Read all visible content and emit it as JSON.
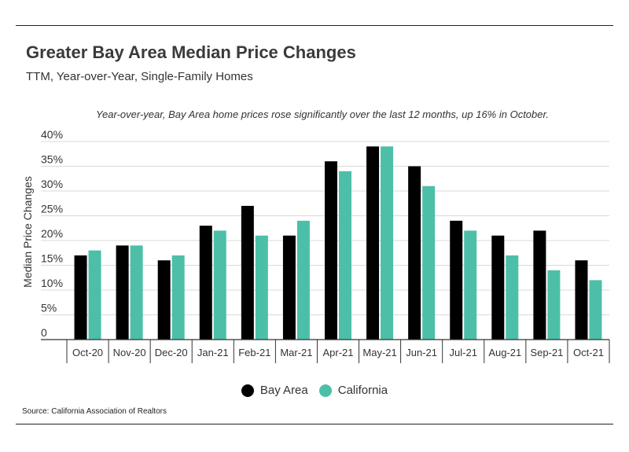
{
  "header": {
    "title": "Greater Bay Area Median Price Changes",
    "subtitle": "TTM, Year-over-Year, Single-Family Homes"
  },
  "annotation": "Year-over-year, Bay Area home prices rose significantly over the last 12 months, up 16% in October.",
  "source": "Source:  California Association of Realtors",
  "colors": {
    "bay_area": "#000000",
    "california": "#4dbfa8"
  },
  "chart_data": {
    "type": "bar",
    "title": "Greater Bay Area Median Price Changes",
    "subtitle": "TTM, Year-over-Year, Single-Family Homes",
    "xlabel": "",
    "ylabel": "Median Price Changes",
    "categories": [
      "Oct-20",
      "Nov-20",
      "Dec-20",
      "Jan-21",
      "Feb-21",
      "Mar-21",
      "Apr-21",
      "May-21",
      "Jun-21",
      "Jul-21",
      "Aug-21",
      "Sep-21",
      "Oct-21"
    ],
    "series": [
      {
        "name": "Bay Area",
        "values": [
          17,
          19,
          16,
          23,
          27,
          21,
          36,
          39,
          35,
          24,
          21,
          22,
          16
        ]
      },
      {
        "name": "California",
        "values": [
          18,
          19,
          17,
          22,
          21,
          24,
          34,
          39,
          31,
          22,
          17,
          14,
          12
        ]
      }
    ],
    "ylim": [
      0,
      40
    ],
    "yticks": [
      "0",
      "5%",
      "10%",
      "15%",
      "20%",
      "25%",
      "30%",
      "35%",
      "40%"
    ],
    "grid": true,
    "legend_position": "bottom"
  }
}
